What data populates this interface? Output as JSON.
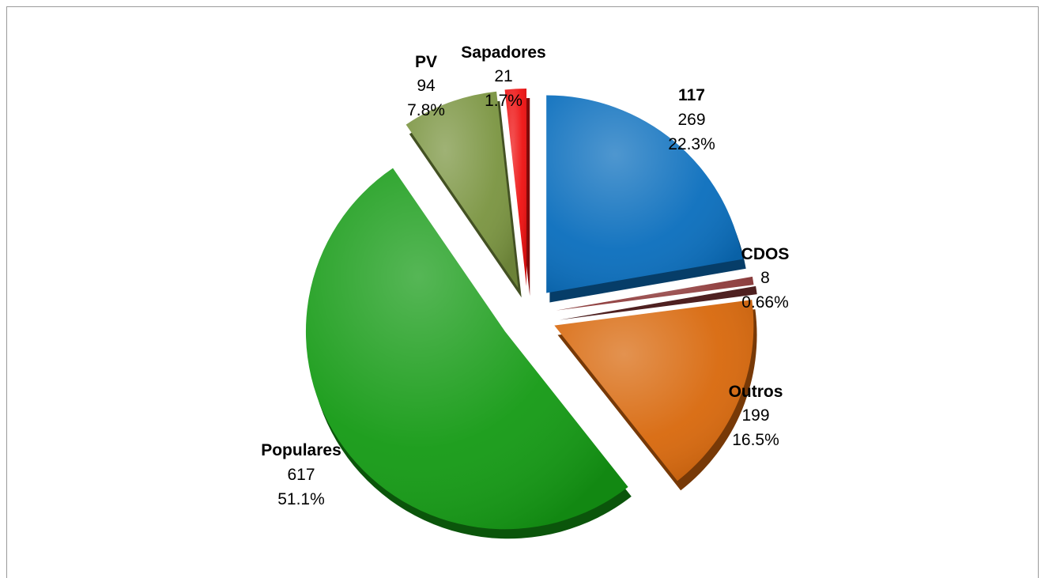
{
  "chart_data": {
    "type": "pie",
    "style": "3d-exploded",
    "slices": [
      {
        "name": "117",
        "value": 269,
        "percent": "22.3%",
        "color": "#0a6ebd"
      },
      {
        "name": "CDOS",
        "value": 8,
        "percent": "0.66%",
        "color": "#8e3a3a"
      },
      {
        "name": "Outros",
        "value": 199,
        "percent": "16.5%",
        "color": "#d8680c"
      },
      {
        "name": "Populares",
        "value": 617,
        "percent": "51.1%",
        "color": "#149a14"
      },
      {
        "name": "PV",
        "value": 94,
        "percent": "7.8%",
        "color": "#7a9440"
      },
      {
        "name": "Sapadores",
        "value": 21,
        "percent": "1.7%",
        "color": "#ee1111"
      }
    ],
    "legend": "none",
    "data_labels": "name-value-percent"
  }
}
